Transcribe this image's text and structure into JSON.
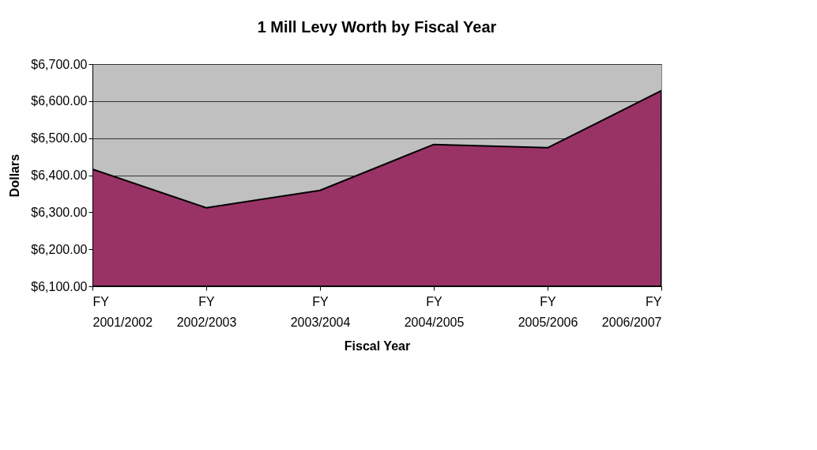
{
  "chart_data": {
    "type": "area",
    "title": "1 Mill Levy Worth by Fiscal Year",
    "xlabel": "Fiscal Year",
    "ylabel": "Dollars",
    "categories": [
      "FY 2001/2002",
      "FY 2002/2003",
      "FY 2003/2004",
      "FY 2004/2005",
      "FY 2005/2006",
      "FY 2006/2007"
    ],
    "series": [
      {
        "color": "#993366",
        "values": [
          6416,
          6312,
          6359,
          6483,
          6474,
          6628
        ]
      }
    ],
    "ylim": [
      6100,
      6700
    ],
    "yticks": [
      {
        "value": 6100,
        "label": "$6,100.00"
      },
      {
        "value": 6200,
        "label": "$6,200.00"
      },
      {
        "value": 6300,
        "label": "$6,300.00"
      },
      {
        "value": 6400,
        "label": "$6,400.00"
      },
      {
        "value": 6500,
        "label": "$6,500.00"
      },
      {
        "value": 6600,
        "label": "$6,600.00"
      },
      {
        "value": 6700,
        "label": "$6,700.00"
      }
    ],
    "grid": "y"
  }
}
